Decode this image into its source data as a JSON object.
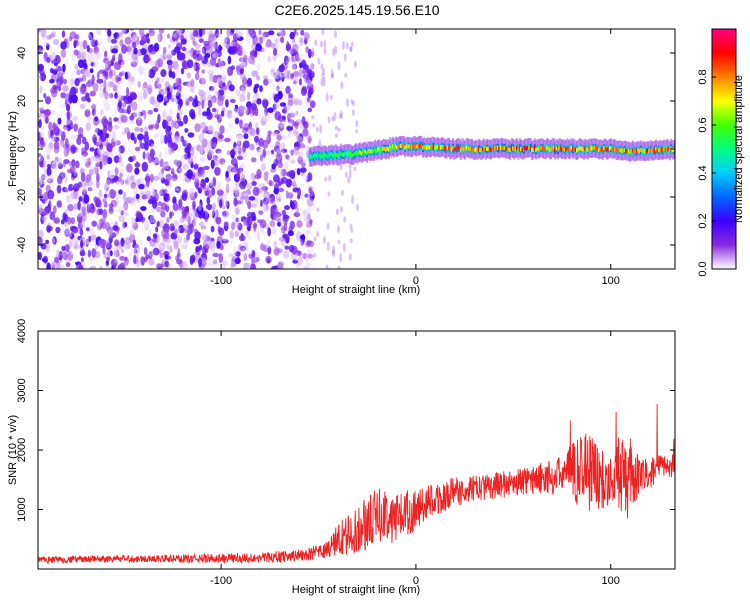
{
  "title": "C2E6.2025.145.19.56.E10",
  "chart_data": [
    {
      "type": "heatmap",
      "title": "C2E6.2025.145.19.56.E10",
      "xlabel": "Height of straight line (km)",
      "ylabel": "Frequency (Hz)",
      "xlim": [
        -194,
        133
      ],
      "ylim": [
        -50,
        50
      ],
      "xticks": [
        -100,
        0,
        100
      ],
      "yticks": [
        -40,
        -20,
        0,
        20,
        40
      ],
      "colorbar": {
        "label": "Normalized spectral amplitude",
        "range": [
          0,
          1
        ],
        "ticks": [
          0.0,
          0.2,
          0.4,
          0.6,
          0.8
        ],
        "colormap": [
          "#ffffff",
          "#8a2be2",
          "#3b00ff",
          "#0066ff",
          "#00ccff",
          "#00ff80",
          "#44ff00",
          "#ffff00",
          "#ff8000",
          "#ff0000",
          "#ff0080"
        ]
      },
      "regions": [
        {
          "description": "broadband noise",
          "x_range": [
            -194,
            -53
          ],
          "freq_range": [
            -50,
            50
          ],
          "amplitude": [
            0.0,
            0.2
          ]
        },
        {
          "description": "narrow tone",
          "x_range": [
            -55,
            133
          ],
          "freq_center": [
            [
              -55,
              -3
            ],
            [
              -30,
              -2
            ],
            [
              -10,
              1
            ],
            [
              0,
              1
            ],
            [
              20,
              0
            ],
            [
              60,
              0
            ],
            [
              100,
              0
            ],
            [
              110,
              -1
            ],
            [
              133,
              0
            ]
          ],
          "half_width_hz": 3,
          "amplitude": [
            0.3,
            0.95
          ]
        }
      ]
    },
    {
      "type": "line",
      "xlabel": "Height of straight line (km)",
      "ylabel": "SNR (10 * v/v)",
      "xlim": [
        -194,
        133
      ],
      "ylim": [
        0,
        4000
      ],
      "xticks": [
        -100,
        0,
        100
      ],
      "yticks": [
        1000,
        2000,
        3000,
        4000
      ],
      "color": "#ee2222",
      "x": [
        -194,
        -180,
        -160,
        -140,
        -120,
        -100,
        -80,
        -60,
        -50,
        -45,
        -40,
        -35,
        -30,
        -25,
        -20,
        -15,
        -10,
        -5,
        0,
        10,
        20,
        30,
        40,
        50,
        60,
        70,
        75,
        80,
        85,
        90,
        95,
        100,
        105,
        110,
        115,
        120,
        125,
        133
      ],
      "y": [
        150,
        160,
        170,
        175,
        170,
        180,
        190,
        230,
        280,
        330,
        500,
        560,
        640,
        780,
        900,
        920,
        850,
        950,
        1000,
        1150,
        1300,
        1350,
        1400,
        1450,
        1500,
        1550,
        1600,
        1620,
        1700,
        1650,
        1500,
        1500,
        1600,
        1500,
        1550,
        1600,
        1700,
        1750
      ],
      "spread": [
        60,
        60,
        60,
        60,
        70,
        80,
        90,
        100,
        120,
        150,
        300,
        350,
        400,
        450,
        450,
        450,
        450,
        400,
        350,
        300,
        250,
        220,
        220,
        230,
        250,
        300,
        300,
        500,
        700,
        700,
        500,
        450,
        700,
        700,
        300,
        250,
        230,
        220
      ]
    }
  ]
}
